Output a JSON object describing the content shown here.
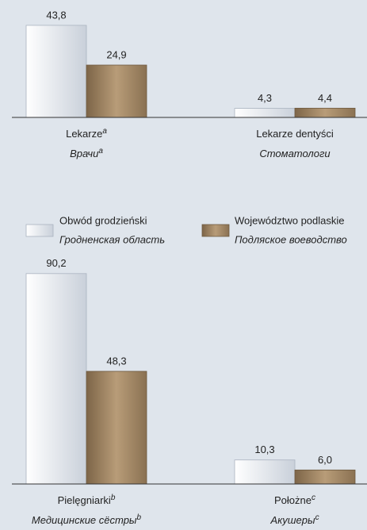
{
  "chart_data": [
    {
      "type": "bar",
      "categories": [
        "Lekarze",
        "Lekarze dentyści"
      ],
      "categories_ru": [
        "Врачи",
        "Стоматологи"
      ],
      "category_notes": [
        "a",
        null
      ],
      "series": [
        {
          "name": "Obwód grodzieński",
          "name_ru": "Гродненская область",
          "color": "#e4e8ef",
          "values": [
            43.8,
            4.3
          ],
          "value_labels": [
            "43,8",
            "4,3"
          ]
        },
        {
          "name": "Województwo podlaskie",
          "name_ru": "Подляское воеводство",
          "color": "#9c8263",
          "values": [
            24.9,
            4.4
          ],
          "value_labels": [
            "24,9",
            "4,4"
          ]
        }
      ]
    },
    {
      "type": "bar",
      "categories": [
        "Pielęgniarki",
        "Położne"
      ],
      "categories_ru": [
        "Медицинские сёстры",
        "Акушеры"
      ],
      "category_notes": [
        "b",
        "c"
      ],
      "series": [
        {
          "color": "#e4e8ef",
          "values": [
            90.2,
            10.3
          ],
          "value_labels": [
            "90,2",
            "10,3"
          ]
        },
        {
          "color": "#9c8263",
          "values": [
            48.3,
            6.0
          ],
          "value_labels": [
            "48,3",
            "6,0"
          ]
        }
      ]
    }
  ]
}
